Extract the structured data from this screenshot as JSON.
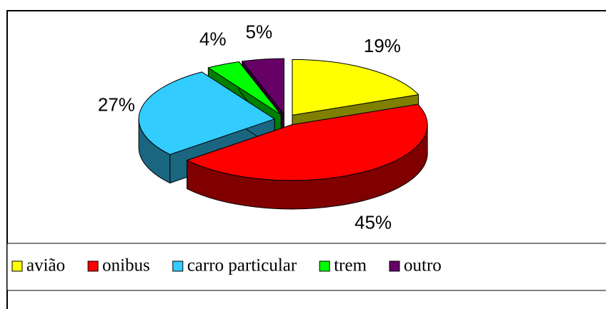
{
  "chart_data": {
    "type": "pie",
    "categories": [
      "avião",
      "onibus",
      "carro particular",
      "trem",
      "outro"
    ],
    "values": [
      19,
      45,
      27,
      4,
      5
    ],
    "value_labels": [
      "19%",
      "45%",
      "27%",
      "4%",
      "5%"
    ],
    "colors": [
      "#ffff00",
      "#ff0000",
      "#33ccff",
      "#00ff00",
      "#660066"
    ],
    "legend": "bottom"
  }
}
